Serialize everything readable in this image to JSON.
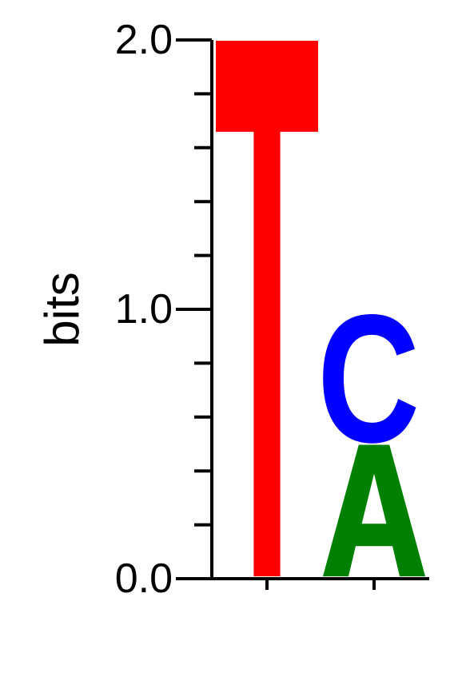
{
  "chart_data": {
    "type": "sequence-logo",
    "ylabel": "bits",
    "ylim": [
      0,
      2
    ],
    "y_tick_labels": [
      "0.0",
      "1.0",
      "2.0"
    ],
    "major_ticks": [
      0,
      1,
      2
    ],
    "minor_ticks": [
      0.2,
      0.4,
      0.6,
      0.8,
      1.2,
      1.4,
      1.6,
      1.8
    ],
    "positions": [
      {
        "letters": [
          {
            "base": "T",
            "bits": 2.0,
            "color": "#ff0000"
          }
        ]
      },
      {
        "letters": [
          {
            "base": "A",
            "bits": 0.5,
            "color": "#008000"
          },
          {
            "base": "C",
            "bits": 0.5,
            "color": "#0000ff"
          }
        ]
      }
    ]
  }
}
